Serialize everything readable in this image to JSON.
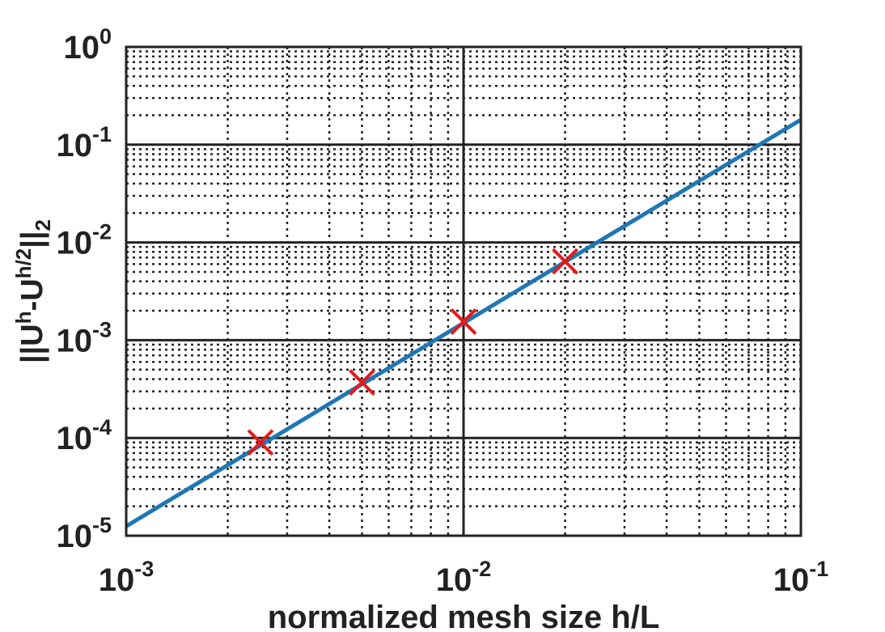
{
  "chart_data": {
    "type": "line",
    "title": "",
    "xlabel": "normalized mesh size h/L",
    "ylabel": {
      "prefix": "||U",
      "sup1": "h",
      "mid": "-U",
      "sup2": "h/2",
      "suffix": "||",
      "sub": "2"
    },
    "xscale": "log",
    "yscale": "log",
    "xlim": [
      0.001,
      0.1
    ],
    "ylim": [
      1e-05,
      1
    ],
    "grid": true,
    "legend": "none",
    "x_ticks": [
      {
        "value": 0.001,
        "base": "10",
        "exp": "-3"
      },
      {
        "value": 0.01,
        "base": "10",
        "exp": "-2"
      },
      {
        "value": 0.1,
        "base": "10",
        "exp": "-1"
      }
    ],
    "y_ticks": [
      {
        "value": 1e-05,
        "base": "10",
        "exp": "-5"
      },
      {
        "value": 0.0001,
        "base": "10",
        "exp": "-4"
      },
      {
        "value": 0.001,
        "base": "10",
        "exp": "-3"
      },
      {
        "value": 0.01,
        "base": "10",
        "exp": "-2"
      },
      {
        "value": 0.1,
        "base": "10",
        "exp": "-1"
      },
      {
        "value": 1,
        "base": "10",
        "exp": "0"
      }
    ],
    "series": [
      {
        "kind": "line",
        "color": "#1f77b4",
        "x": [
          0.001,
          0.1
        ],
        "y": [
          1.25e-05,
          0.18
        ]
      },
      {
        "kind": "markers",
        "marker": "x",
        "color": "#e41a1c",
        "x": [
          0.0025,
          0.005,
          0.01,
          0.02
        ],
        "y": [
          9e-05,
          0.00037,
          0.00155,
          0.0064
        ]
      }
    ]
  }
}
